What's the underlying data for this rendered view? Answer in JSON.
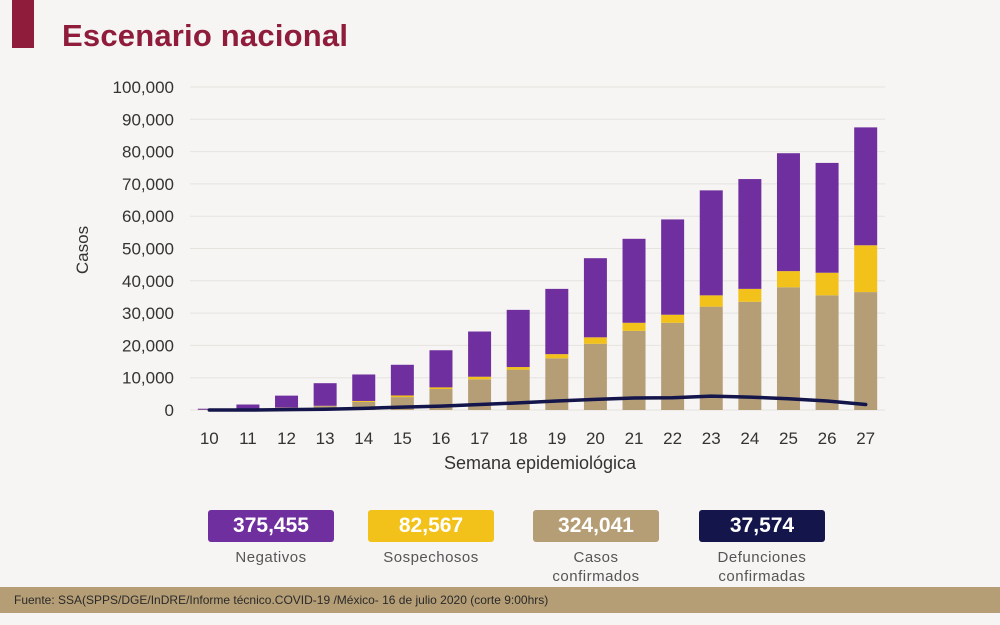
{
  "header": {
    "title": "Escenario nacional"
  },
  "colors": {
    "accent": "#8e1c3a",
    "negativos": "#6f2f9e",
    "sospechosos": "#f2c21b",
    "confirmados": "#b59e76",
    "defunciones": "#13154b"
  },
  "chart_data": {
    "type": "bar",
    "stacked": true,
    "categories": [
      "10",
      "11",
      "12",
      "13",
      "14",
      "15",
      "16",
      "17",
      "18",
      "19",
      "20",
      "21",
      "22",
      "23",
      "24",
      "25",
      "26",
      "27"
    ],
    "series": [
      {
        "name": "Casos confirmados",
        "color": "#b59e76",
        "values": [
          100,
          300,
          700,
          1200,
          2500,
          4000,
          6500,
          9500,
          12500,
          16000,
          20500,
          24500,
          27000,
          32000,
          33500,
          38000,
          35500,
          36500
        ]
      },
      {
        "name": "Sospechosos",
        "color": "#f2c21b",
        "values": [
          0,
          0,
          50,
          100,
          300,
          500,
          500,
          800,
          800,
          1300,
          2000,
          2500,
          2500,
          3500,
          4000,
          5000,
          7000,
          14500
        ]
      },
      {
        "name": "Negativos",
        "color": "#6f2f9e",
        "values": [
          300,
          1400,
          3700,
          7000,
          8200,
          9500,
          11500,
          14000,
          17700,
          20200,
          24500,
          26000,
          29500,
          32500,
          34000,
          36500,
          34000,
          36500
        ]
      }
    ],
    "line": {
      "name": "Defunciones confirmadas",
      "color": "#13154b",
      "values": [
        0,
        0,
        100,
        250,
        500,
        900,
        1200,
        1700,
        2200,
        2800,
        3300,
        3700,
        3800,
        4300,
        4000,
        3500,
        2800,
        1700
      ]
    },
    "xlabel": "Semana epidemiológica",
    "ylabel": "Casos",
    "ylim": [
      0,
      100000
    ],
    "yticks": [
      0,
      10000,
      20000,
      30000,
      40000,
      50000,
      60000,
      70000,
      80000,
      90000,
      100000
    ],
    "ytick_labels": [
      "0",
      "10,000",
      "20,000",
      "30,000",
      "40,000",
      "50,000",
      "60,000",
      "70,000",
      "80,000",
      "90,000",
      "100,000"
    ],
    "grid": true
  },
  "legend": {
    "negativos": {
      "value": "375,455",
      "label": "Negativos"
    },
    "sospechosos": {
      "value": "82,567",
      "label": "Sospechosos"
    },
    "confirmados": {
      "value": "324,041",
      "label": "Casos\nconfirmados"
    },
    "defunciones": {
      "value": "37,574",
      "label": "Defunciones\nconfirmadas"
    }
  },
  "footer": {
    "source": "Fuente: SSA(SPPS/DGE/InDRE/Informe técnico.COVID-19 /México- 16 de julio 2020 (corte 9:00hrs)"
  }
}
